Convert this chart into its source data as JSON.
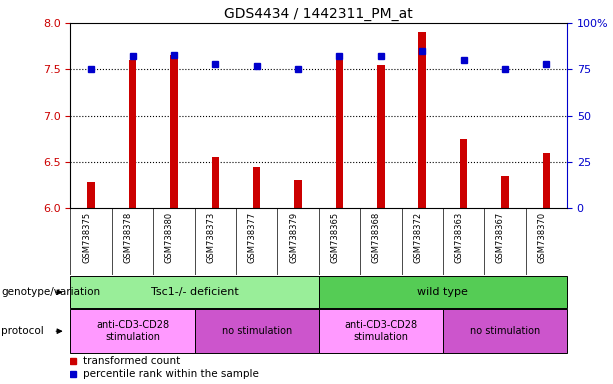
{
  "title": "GDS4434 / 1442311_PM_at",
  "samples": [
    "GSM738375",
    "GSM738378",
    "GSM738380",
    "GSM738373",
    "GSM738377",
    "GSM738379",
    "GSM738365",
    "GSM738368",
    "GSM738372",
    "GSM738363",
    "GSM738367",
    "GSM738370"
  ],
  "bar_values": [
    6.28,
    7.6,
    7.65,
    6.55,
    6.44,
    6.3,
    7.6,
    7.55,
    7.9,
    6.75,
    6.35,
    6.6
  ],
  "dot_values": [
    75,
    82,
    83,
    78,
    77,
    75,
    82,
    82,
    85,
    80,
    75,
    78
  ],
  "ylim_left": [
    6,
    8
  ],
  "ylim_right": [
    0,
    100
  ],
  "yticks_left": [
    6,
    6.5,
    7,
    7.5,
    8
  ],
  "yticks_right": [
    0,
    25,
    50,
    75,
    100
  ],
  "bar_color": "#cc0000",
  "dot_color": "#0000cc",
  "bg_color": "#ffffff",
  "genotype_groups": [
    {
      "label": "Tsc1-/- deficient",
      "start": 0,
      "end": 6,
      "color": "#99ee99"
    },
    {
      "label": "wild type",
      "start": 6,
      "end": 12,
      "color": "#55cc55"
    }
  ],
  "protocol_groups": [
    {
      "label": "anti-CD3-CD28\nstimulation",
      "start": 0,
      "end": 3,
      "color": "#ff99ff"
    },
    {
      "label": "no stimulation",
      "start": 3,
      "end": 6,
      "color": "#cc55cc"
    },
    {
      "label": "anti-CD3-CD28\nstimulation",
      "start": 6,
      "end": 9,
      "color": "#ff99ff"
    },
    {
      "label": "no stimulation",
      "start": 9,
      "end": 12,
      "color": "#cc55cc"
    }
  ],
  "legend_items": [
    {
      "color": "#cc0000",
      "label": "transformed count"
    },
    {
      "color": "#0000cc",
      "label": "percentile rank within the sample"
    }
  ],
  "left_labels": [
    "genotype/variation",
    "protocol"
  ],
  "ticklabel_right_color": "#0000cc",
  "ticklabel_left_color": "#cc0000",
  "bar_bottom": 6.0,
  "bar_width": 0.18
}
